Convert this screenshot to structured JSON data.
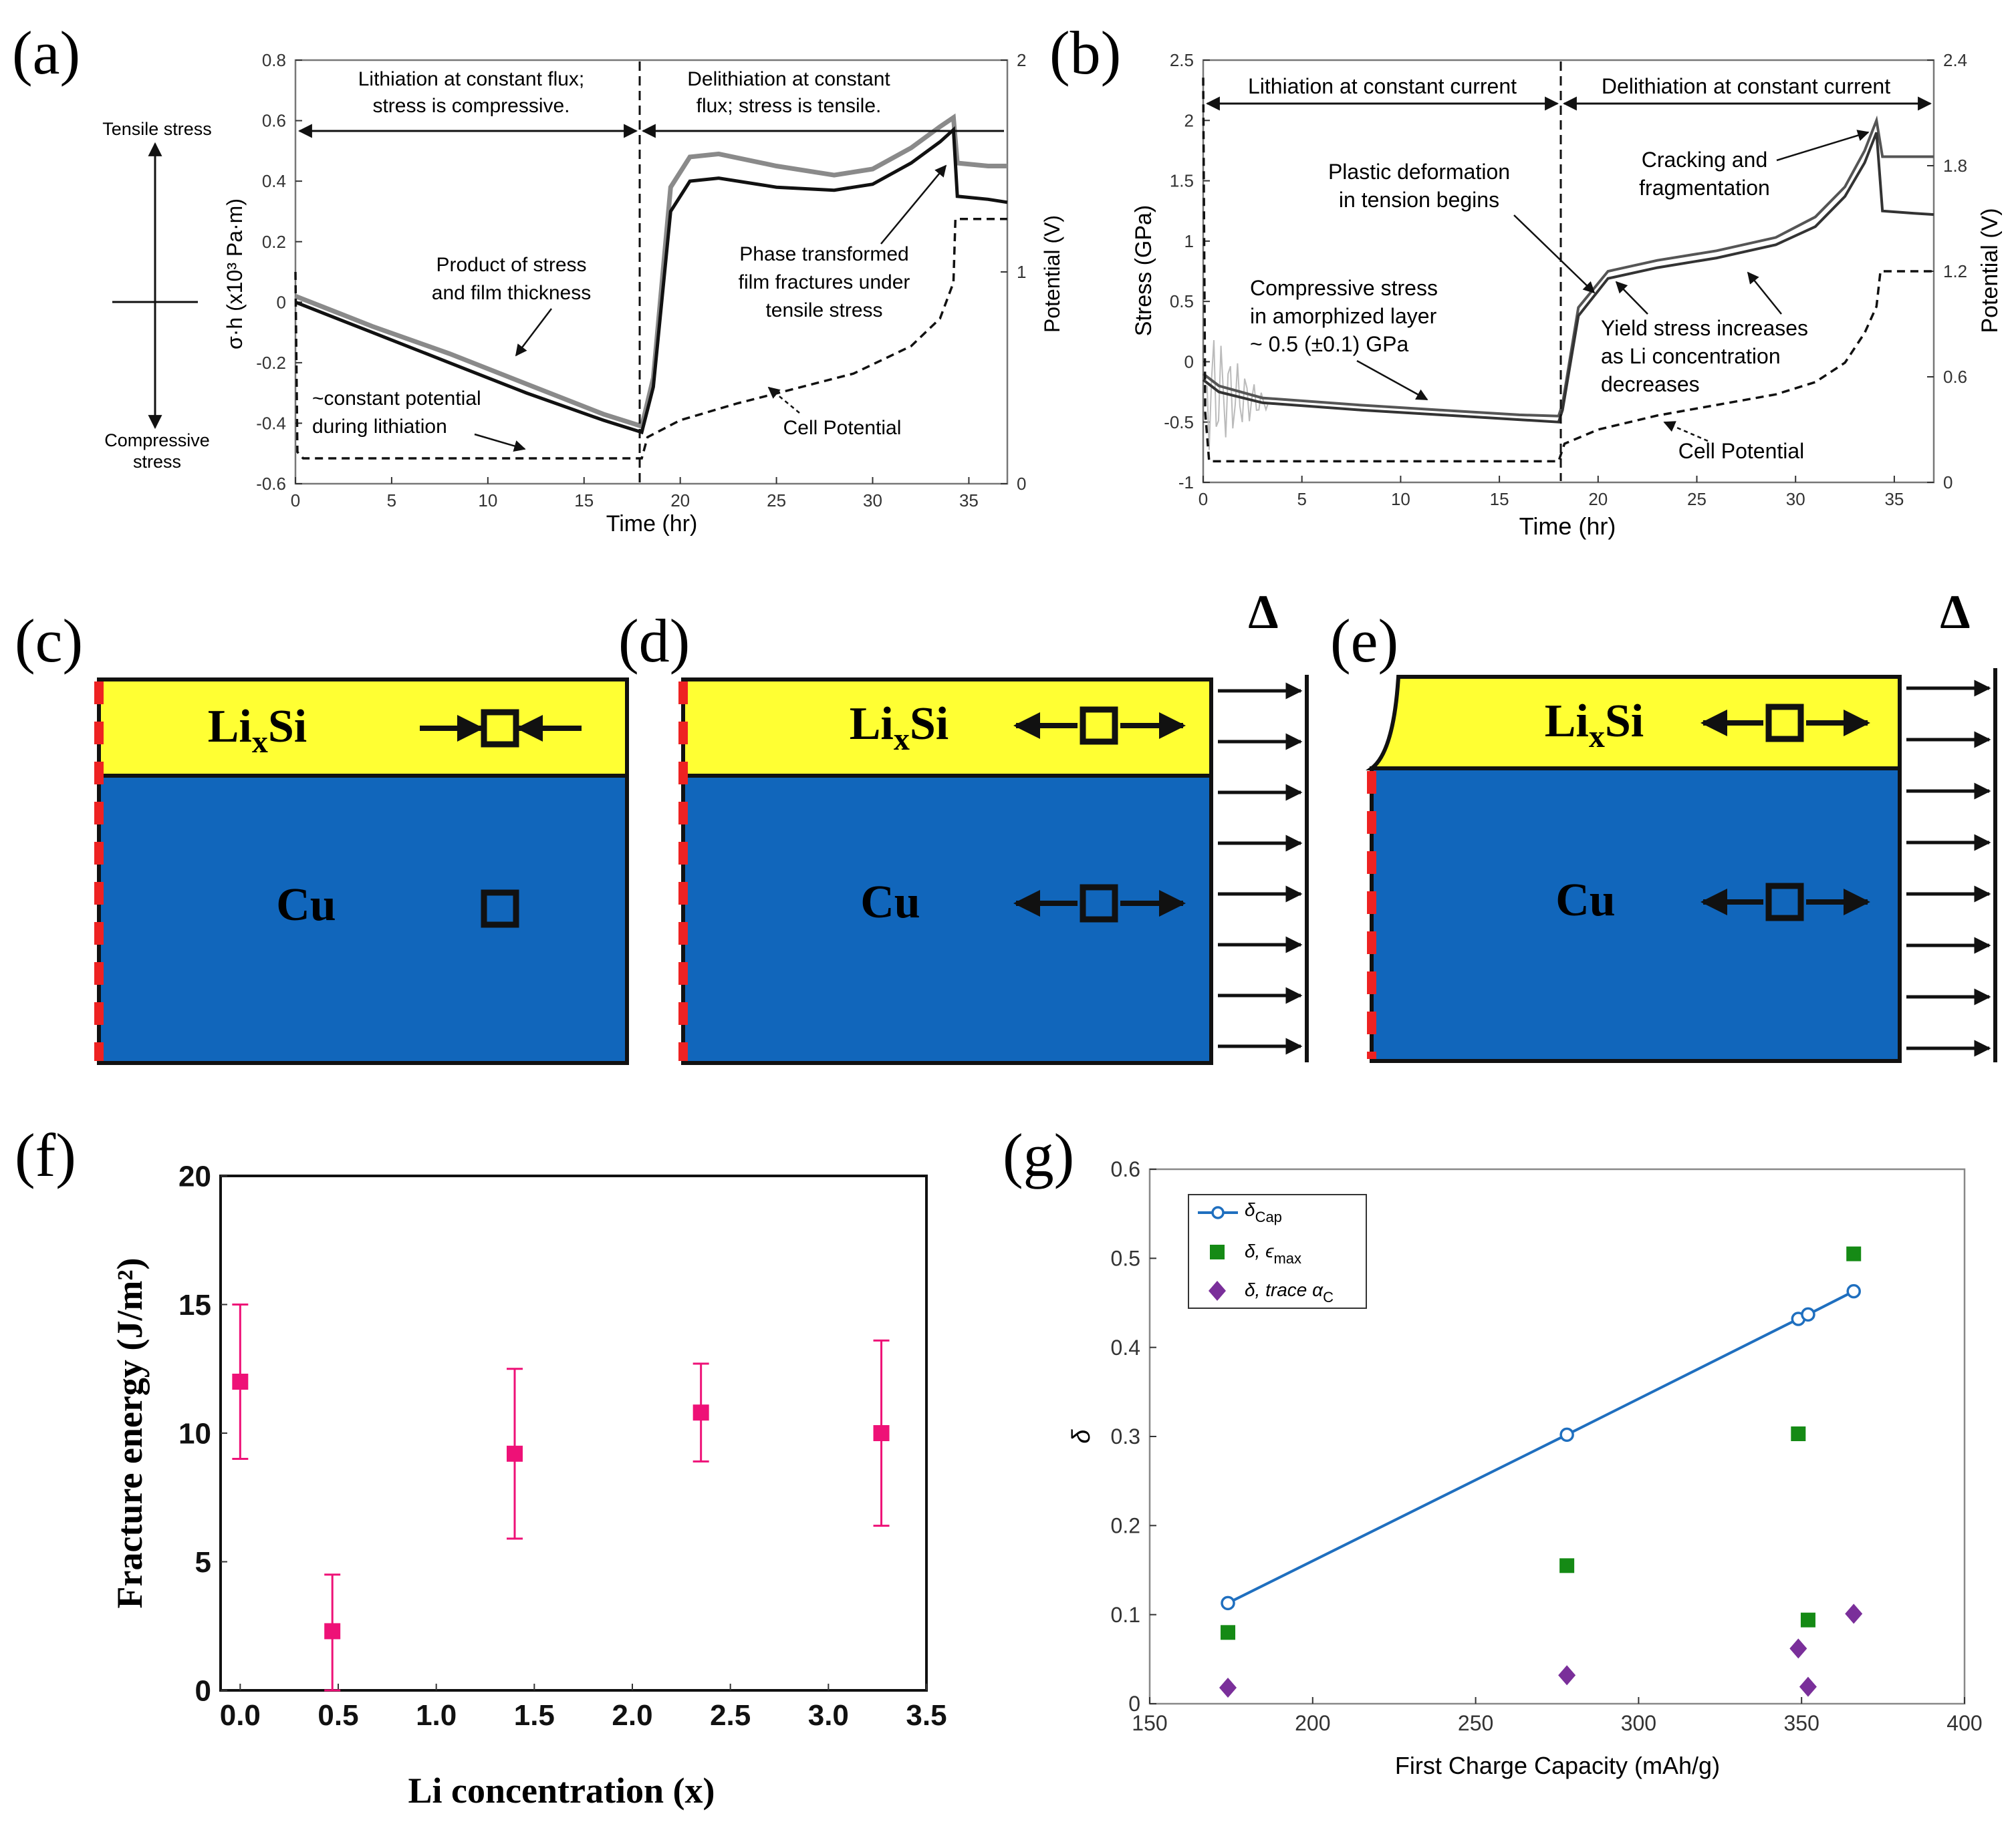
{
  "panels": {
    "a": {
      "label": "(a)"
    },
    "b": {
      "label": "(b)"
    },
    "c": {
      "label": "(c)",
      "film": "Li",
      "film_sub": "x",
      "film_tail": "Si",
      "sub": "Cu"
    },
    "d": {
      "label": "(d)",
      "film": "Li",
      "film_sub": "x",
      "film_tail": "Si",
      "sub": "Cu",
      "delta": "Δ"
    },
    "e": {
      "label": "(e)",
      "film": "Li",
      "film_sub": "x",
      "film_tail": "Si",
      "sub": "Cu",
      "delta": "Δ"
    },
    "f": {
      "label": "(f)"
    },
    "g": {
      "label": "(g)"
    }
  },
  "colors": {
    "film": "#ffff33",
    "substrate": "#1166bb",
    "constraint": "#ee2222",
    "pink": "#ee1177",
    "blue": "#1f6fbf",
    "green": "#158a15",
    "purple": "#7a2f9a"
  },
  "chart_data": [
    {
      "id": "a",
      "type": "line",
      "xlabel": "Time (hr)",
      "ylabel": "σ·h (x10³ Pa·m)",
      "y2label": "Potential (V)",
      "xlim": [
        0,
        37
      ],
      "ylim": [
        -0.6,
        0.8
      ],
      "y2lim": [
        0,
        2
      ],
      "xticks": [
        "0",
        "5",
        "10",
        "15",
        "20",
        "25",
        "30",
        "35"
      ],
      "yticks": [
        "-0.6",
        "-0.4",
        "-0.2",
        "0",
        "0.2",
        "0.4",
        "0.6",
        "0.8"
      ],
      "y2ticks": [
        "0",
        "1",
        "2"
      ],
      "side_top": "Tensile stress",
      "side_bottom_1": "Compressive",
      "side_bottom_2": "stress",
      "regions": [
        {
          "text1": "Lithiation at constant flux;",
          "text2": "stress is compressive."
        },
        {
          "text1": "Delithiation at constant",
          "text2": "flux; stress is tensile."
        }
      ],
      "annotations": [
        {
          "l1": "Product of stress",
          "l2": "and film thickness",
          "l3": ""
        },
        {
          "l1": "Phase transformed",
          "l2": "film fractures under",
          "l3": "tensile stress"
        },
        {
          "l1": "~constant potential",
          "l2": "during lithiation",
          "l3": ""
        },
        {
          "l1": "Cell Potential",
          "l2": "",
          "l3": ""
        }
      ],
      "series": [
        {
          "name": "σ·h (gray)",
          "x": [
            0,
            4,
            8,
            12,
            16,
            18,
            18.6,
            19.5,
            20.5,
            22,
            25,
            28,
            30,
            32,
            33.5,
            34.2,
            34.4,
            36,
            37
          ],
          "y": [
            0.02,
            -0.08,
            -0.17,
            -0.27,
            -0.37,
            -0.41,
            -0.25,
            0.38,
            0.48,
            0.49,
            0.45,
            0.42,
            0.44,
            0.51,
            0.58,
            0.61,
            0.46,
            0.45,
            0.45
          ]
        },
        {
          "name": "σ·h (black)",
          "x": [
            0,
            4,
            8,
            12,
            16,
            18,
            18.6,
            19.5,
            20.5,
            22,
            25,
            28,
            30,
            32,
            33.5,
            34.2,
            34.4,
            36,
            37
          ],
          "y": [
            0.0,
            -0.1,
            -0.2,
            -0.3,
            -0.39,
            -0.43,
            -0.28,
            0.3,
            0.4,
            0.41,
            0.38,
            0.37,
            0.39,
            0.46,
            0.53,
            0.57,
            0.35,
            0.34,
            0.33
          ]
        },
        {
          "name": "Cell Potential",
          "x": [
            0,
            0.1,
            0.4,
            18,
            18.3,
            20,
            23,
            26,
            29,
            32,
            33.5,
            34.2,
            34.3,
            35,
            37
          ],
          "y": [
            1.0,
            0.15,
            0.12,
            0.12,
            0.22,
            0.3,
            0.38,
            0.45,
            0.52,
            0.65,
            0.78,
            0.95,
            1.25,
            1.25,
            1.25
          ]
        }
      ]
    },
    {
      "id": "b",
      "type": "line",
      "xlabel": "Time (hr)",
      "ylabel": "Stress (GPa)",
      "y2label": "Potential (V)",
      "xlim": [
        0,
        37
      ],
      "ylim": [
        -1,
        2.5
      ],
      "y2lim": [
        0,
        2.4
      ],
      "xticks": [
        "0",
        "5",
        "10",
        "15",
        "20",
        "25",
        "30",
        "35"
      ],
      "yticks": [
        "-1",
        "-0.5",
        "0",
        "0.5",
        "1",
        "1.5",
        "2",
        "2.5"
      ],
      "y2ticks": [
        "0",
        "0.6",
        "1.2",
        "1.8",
        "2.4"
      ],
      "regions": [
        {
          "text1": "Lithiation at constant current"
        },
        {
          "text1": "Delithiation at constant current"
        }
      ],
      "annotations": [
        {
          "l1": "Plastic deformation",
          "l2": "in tension begins",
          "l3": ""
        },
        {
          "l1": "Cracking and",
          "l2": "fragmentation",
          "l3": ""
        },
        {
          "l1": "Compressive stress",
          "l2": "in amorphized layer",
          "l3": "~ 0.5 (±0.1) GPa"
        },
        {
          "l1": "Yield stress increases",
          "l2": "as Li concentration",
          "l3": "decreases"
        },
        {
          "l1": "Cell Potential",
          "l2": "",
          "l3": ""
        }
      ],
      "series": [
        {
          "name": "Stress (upper)",
          "x": [
            0,
            0.4,
            0.8,
            3,
            8,
            12,
            16,
            18,
            18.2,
            19,
            20.5,
            23,
            26,
            29,
            31,
            32.5,
            33.5,
            34.1,
            34.4,
            36,
            37
          ],
          "y": [
            -0.1,
            -0.15,
            -0.2,
            -0.3,
            -0.36,
            -0.4,
            -0.44,
            -0.45,
            -0.35,
            0.45,
            0.75,
            0.84,
            0.92,
            1.03,
            1.2,
            1.45,
            1.75,
            2.0,
            1.7,
            1.7,
            1.7
          ]
        },
        {
          "name": "Stress (lower)",
          "x": [
            0,
            0.4,
            0.8,
            3,
            8,
            12,
            16,
            18,
            18.2,
            19,
            20.5,
            23,
            26,
            29,
            31,
            32.5,
            33.5,
            34.1,
            34.4,
            36,
            37
          ],
          "y": [
            -0.15,
            -0.2,
            -0.25,
            -0.34,
            -0.4,
            -0.44,
            -0.48,
            -0.5,
            -0.4,
            0.38,
            0.69,
            0.78,
            0.86,
            0.97,
            1.12,
            1.37,
            1.65,
            1.9,
            1.25,
            1.23,
            1.22
          ]
        },
        {
          "name": "Cell Potential",
          "x": [
            0,
            0.1,
            0.3,
            18,
            18.3,
            20,
            23,
            26,
            29,
            31,
            32.5,
            33.5,
            34.1,
            34.3,
            35,
            37
          ],
          "y": [
            2.3,
            0.4,
            0.12,
            0.12,
            0.22,
            0.3,
            0.38,
            0.44,
            0.5,
            0.57,
            0.68,
            0.85,
            1.0,
            1.2,
            1.2,
            1.2
          ]
        }
      ]
    },
    {
      "id": "f",
      "type": "scatter",
      "xlabel": "Li concentration (x)",
      "ylabel": "Fracture energy (J/m²)",
      "xlim": [
        -0.1,
        3.5
      ],
      "ylim": [
        0,
        20
      ],
      "xticks": [
        "0.0",
        "0.5",
        "1.0",
        "1.5",
        "2.0",
        "2.5",
        "3.0",
        "3.5"
      ],
      "yticks": [
        "0",
        "5",
        "10",
        "15",
        "20"
      ],
      "points": [
        {
          "x": 0.0,
          "y": 12.0,
          "lo": 9.0,
          "hi": 15.0
        },
        {
          "x": 0.47,
          "y": 2.3,
          "lo": 0.0,
          "hi": 4.5
        },
        {
          "x": 1.4,
          "y": 9.2,
          "lo": 5.9,
          "hi": 12.5
        },
        {
          "x": 2.35,
          "y": 10.8,
          "lo": 8.9,
          "hi": 12.7
        },
        {
          "x": 3.27,
          "y": 10.0,
          "lo": 6.4,
          "hi": 13.6
        }
      ]
    },
    {
      "id": "g",
      "type": "scatter",
      "xlabel": "First Charge Capacity (mAh/g)",
      "ylabel": "δ",
      "xlim": [
        150,
        400
      ],
      "ylim": [
        0,
        0.6
      ],
      "xticks": [
        "150",
        "200",
        "250",
        "300",
        "350",
        "400"
      ],
      "yticks": [
        "0",
        "0.1",
        "0.2",
        "0.3",
        "0.4",
        "0.5",
        "0.6"
      ],
      "legend": {
        "placement": "top-left",
        "entries": [
          {
            "label": "δ",
            "sub": "Cap",
            "tail": ""
          },
          {
            "label": "δ, ϵ",
            "sub": "max",
            "tail": ""
          },
          {
            "label": "δ, trace α",
            "sub": "C",
            "tail": ""
          }
        ]
      },
      "series": [
        {
          "name": "δCap",
          "kind": "line-circle",
          "x": [
            174,
            278,
            349,
            352,
            366
          ],
          "y": [
            0.113,
            0.302,
            0.432,
            0.437,
            0.463
          ]
        },
        {
          "name": "δ, ϵmax",
          "kind": "square",
          "x": [
            174,
            278,
            349,
            352,
            366
          ],
          "y": [
            0.08,
            0.155,
            0.303,
            0.094,
            0.505
          ]
        },
        {
          "name": "δ, trace αC",
          "kind": "diamond",
          "x": [
            174,
            278,
            349,
            352,
            366
          ],
          "y": [
            0.018,
            0.032,
            0.062,
            0.019,
            0.101
          ]
        }
      ]
    }
  ]
}
